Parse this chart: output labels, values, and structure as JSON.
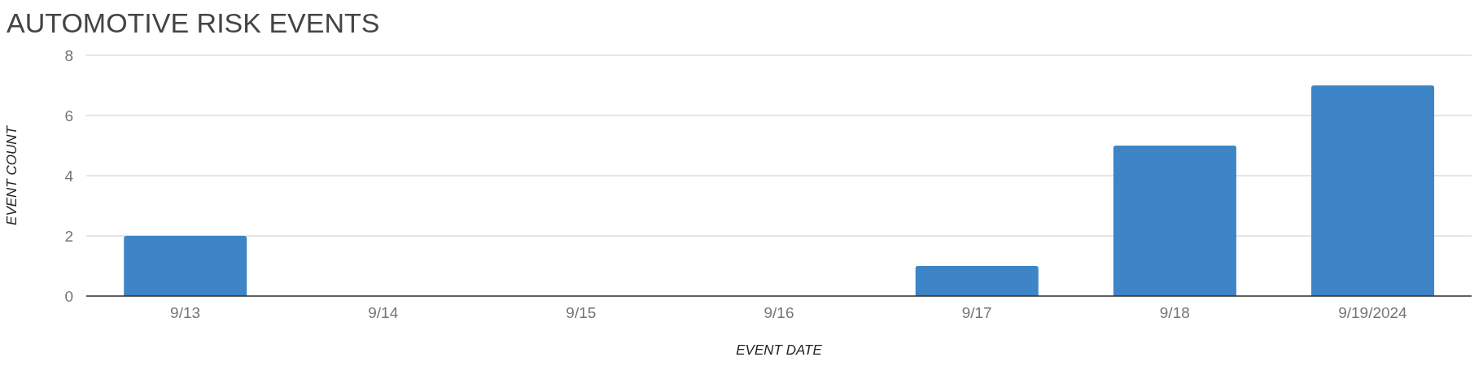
{
  "chart_data": {
    "type": "bar",
    "title": "AUTOMOTIVE RISK EVENTS",
    "xlabel": "EVENT DATE",
    "ylabel": "EVENT COUNT",
    "categories": [
      "9/13",
      "9/14",
      "9/15",
      "9/16",
      "9/17",
      "9/18",
      "9/19/2024"
    ],
    "values": [
      2,
      0,
      0,
      0,
      1,
      5,
      7
    ],
    "color": "#3d85c6",
    "ylim": [
      0,
      8
    ],
    "yticks": [
      0,
      2,
      4,
      6,
      8
    ],
    "grid": "y"
  }
}
